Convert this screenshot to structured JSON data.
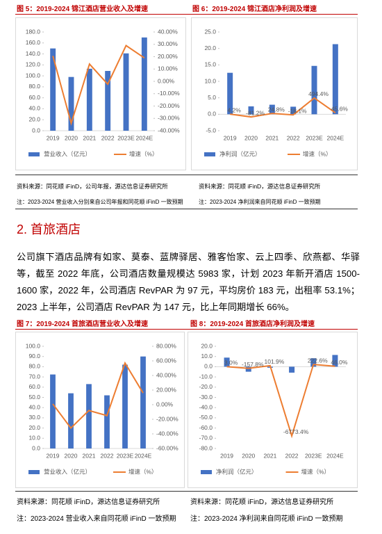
{
  "figures": [
    {
      "title": "图 5：2019-2024 锦江酒店营业收入及增速",
      "source": "资料来源：同花顺 iFinD，公司年报，源达信息证券研究所",
      "note": "注：2023-2024 营业收入分别来自公司年报和同花顺 iFinD 一致预期"
    },
    {
      "title": "图 6：2019-2024 锦江酒店净利润及增速",
      "source": "资料来源：同花顺 iFinD，源达信息证券研究所",
      "note": "注：2023-2024 净利润来自同花顺 iFinD 一致预期"
    },
    {
      "title": "图 7：2019-2024 首旅酒店营业收入及增速",
      "source": "资料来源：同花顺 iFinD，源达信息证券研究所",
      "note": "注：2023-2024 营业收入来自同花顺 iFinD 一致预期"
    },
    {
      "title": "图 8：2019-2024 首旅酒店净利润及增速",
      "source": "资料来源：同花顺 iFinD，源达信息证券研究所",
      "note": "注：2023-2024 净利润来自同花顺 iFinD 一致预期"
    }
  ],
  "section": {
    "heading": "2. 首旅酒店",
    "paragraph": "公司旗下酒店品牌有如家、莫泰、蓝牌驿居、雅客怡家、云上四季、欣燕都、华驿等，截至 2022 年底，公司酒店数量规模达 5983 家，计划 2023 年新开酒店 1500-1600 家，2022 年，公司酒店 RevPAR 为 97 元，平均房价 183 元，出租率 53.1%；2023 上半年，公司酒店 RevPAR 为 147 元，比上年同期增长 66%。"
  },
  "chart_data": [
    {
      "type": "combo",
      "categories": [
        "2019",
        "2020",
        "2021",
        "2022",
        "2023E",
        "2024E"
      ],
      "series": [
        {
          "name": "营业收入（亿元）",
          "type": "bar",
          "color": "#4472c4",
          "values": [
            150,
            98,
            113,
            109,
            141,
            170
          ]
        },
        {
          "name": "增速（%）",
          "type": "line",
          "axis": "y2",
          "color": "#ed7d31",
          "values": [
            20.6,
            -34,
            14,
            -2.3,
            29,
            19
          ]
        }
      ],
      "ylim": [
        0,
        180
      ],
      "yticks": [
        {
          "value": 0,
          "label": "0.0"
        },
        {
          "value": 20,
          "label": "20.0"
        },
        {
          "value": 40,
          "label": "40.0"
        },
        {
          "value": 60,
          "label": "60.0"
        },
        {
          "value": 80,
          "label": "80.0"
        },
        {
          "value": 100,
          "label": "100.0"
        },
        {
          "value": 120,
          "label": "120.0"
        },
        {
          "value": 140,
          "label": "140.0"
        },
        {
          "value": 160,
          "label": "160.0"
        },
        {
          "value": 180,
          "label": "180.0"
        }
      ],
      "y2lim": [
        -40,
        40
      ],
      "y2ticks": [
        {
          "value": -40,
          "label": "-40.00%"
        },
        {
          "value": -30,
          "label": "-30.00%"
        },
        {
          "value": -20,
          "label": "-20.00%"
        },
        {
          "value": -10,
          "label": "-10.00%"
        },
        {
          "value": 0,
          "label": "0.00%"
        },
        {
          "value": 10,
          "label": "10.00%"
        },
        {
          "value": 20,
          "label": "20.00%"
        },
        {
          "value": 30,
          "label": "30.00%"
        },
        {
          "value": 40,
          "label": "40.00%"
        }
      ]
    },
    {
      "type": "combo",
      "categories": [
        "2019",
        "2020",
        "2021",
        "2022",
        "2023E",
        "2024E"
      ],
      "series": [
        {
          "name": "净利润（亿元）",
          "type": "bar",
          "color": "#4472c4",
          "values": [
            12.6,
            2.4,
            2.9,
            2.3,
            14.7,
            21.3
          ]
        },
        {
          "name": "增速（%）",
          "type": "line",
          "axis": "y2",
          "color": "#ed7d31",
          "values": [
            4.2,
            -81.2,
            24.8,
            -18.1,
            494.4,
            45.6
          ],
          "value_labels": [
            "4.2%",
            "-81.2%",
            "24.8%",
            "-18.1%",
            "494.4%",
            "45.6%"
          ]
        }
      ],
      "ylim": [
        -5,
        25
      ],
      "yticks": [
        {
          "value": -5,
          "label": "-5.0"
        },
        {
          "value": 0,
          "label": "0.0"
        },
        {
          "value": 5,
          "label": "5.0"
        },
        {
          "value": 10,
          "label": "10.0"
        },
        {
          "value": 15,
          "label": "15.0"
        },
        {
          "value": 20,
          "label": "20.0"
        },
        {
          "value": 25,
          "label": "25.0"
        }
      ],
      "y2lim": [
        -500,
        2500
      ]
    },
    {
      "type": "combo",
      "categories": [
        "2019",
        "2020",
        "2021",
        "2022",
        "2023E",
        "2024E"
      ],
      "series": [
        {
          "name": "营业收入（亿元）",
          "type": "bar",
          "color": "#4472c4",
          "values": [
            72.4,
            54,
            63,
            52,
            82,
            90
          ]
        },
        {
          "name": "增速（%）",
          "type": "line",
          "axis": "y2",
          "color": "#ed7d31",
          "values": [
            1,
            -32,
            -8,
            -15,
            57,
            16
          ]
        }
      ],
      "ylim": [
        0,
        100
      ],
      "yticks": [
        {
          "value": 0,
          "label": "0.0"
        },
        {
          "value": 10,
          "label": "10.0"
        },
        {
          "value": 20,
          "label": "20.0"
        },
        {
          "value": 30,
          "label": "30.0"
        },
        {
          "value": 40,
          "label": "40.0"
        },
        {
          "value": 50,
          "label": "50.0"
        },
        {
          "value": 60,
          "label": "60.0"
        },
        {
          "value": 70,
          "label": "70.0"
        },
        {
          "value": 80,
          "label": "80.0"
        },
        {
          "value": 90,
          "label": "90.0"
        },
        {
          "value": 100,
          "label": "100.0"
        }
      ],
      "y2lim": [
        -60,
        80
      ],
      "y2ticks": [
        {
          "value": -60,
          "label": "-60.00%"
        },
        {
          "value": -40,
          "label": "-40.00%"
        },
        {
          "value": -20,
          "label": "-20.00%"
        },
        {
          "value": 0,
          "label": "0.00%"
        },
        {
          "value": 20,
          "label": "20.00%"
        },
        {
          "value": 40,
          "label": "40.00%"
        },
        {
          "value": 60,
          "label": "60.00%"
        },
        {
          "value": 80,
          "label": "80.00%"
        }
      ]
    },
    {
      "type": "combo",
      "categories": [
        "2019",
        "2020",
        "2021",
        "2022",
        "2023E",
        "2024E"
      ],
      "series": [
        {
          "name": "净利润（亿元）",
          "type": "bar",
          "color": "#4472c4",
          "values": [
            8.9,
            -4.9,
            -1,
            -5.8,
            8.3,
            11.5
          ]
        },
        {
          "name": "增速（%）",
          "type": "line",
          "axis": "y2",
          "color": "#ed7d31",
          "values": [
            3,
            -157.8,
            101.9,
            -6773.4,
            222.6,
            46
          ],
          "value_labels": [
            "3.0%",
            "-157.8%",
            "101.9%",
            "-6773.4%",
            "222.6%",
            "46.0%"
          ]
        }
      ],
      "ylim": [
        -80,
        20
      ],
      "yticks": [
        {
          "value": -80,
          "label": "-80.0"
        },
        {
          "value": -70,
          "label": "-70.0"
        },
        {
          "value": -60,
          "label": "-60.0"
        },
        {
          "value": -50,
          "label": "-50.0"
        },
        {
          "value": -40,
          "label": "-40.0"
        },
        {
          "value": -30,
          "label": "-30.0"
        },
        {
          "value": -20,
          "label": "-20.0"
        },
        {
          "value": -10,
          "label": "-10.0"
        },
        {
          "value": 0,
          "label": "0.0"
        },
        {
          "value": 10,
          "label": "10.0"
        },
        {
          "value": 20,
          "label": "20.0"
        }
      ],
      "y2lim": [
        -8000,
        2000
      ]
    }
  ]
}
